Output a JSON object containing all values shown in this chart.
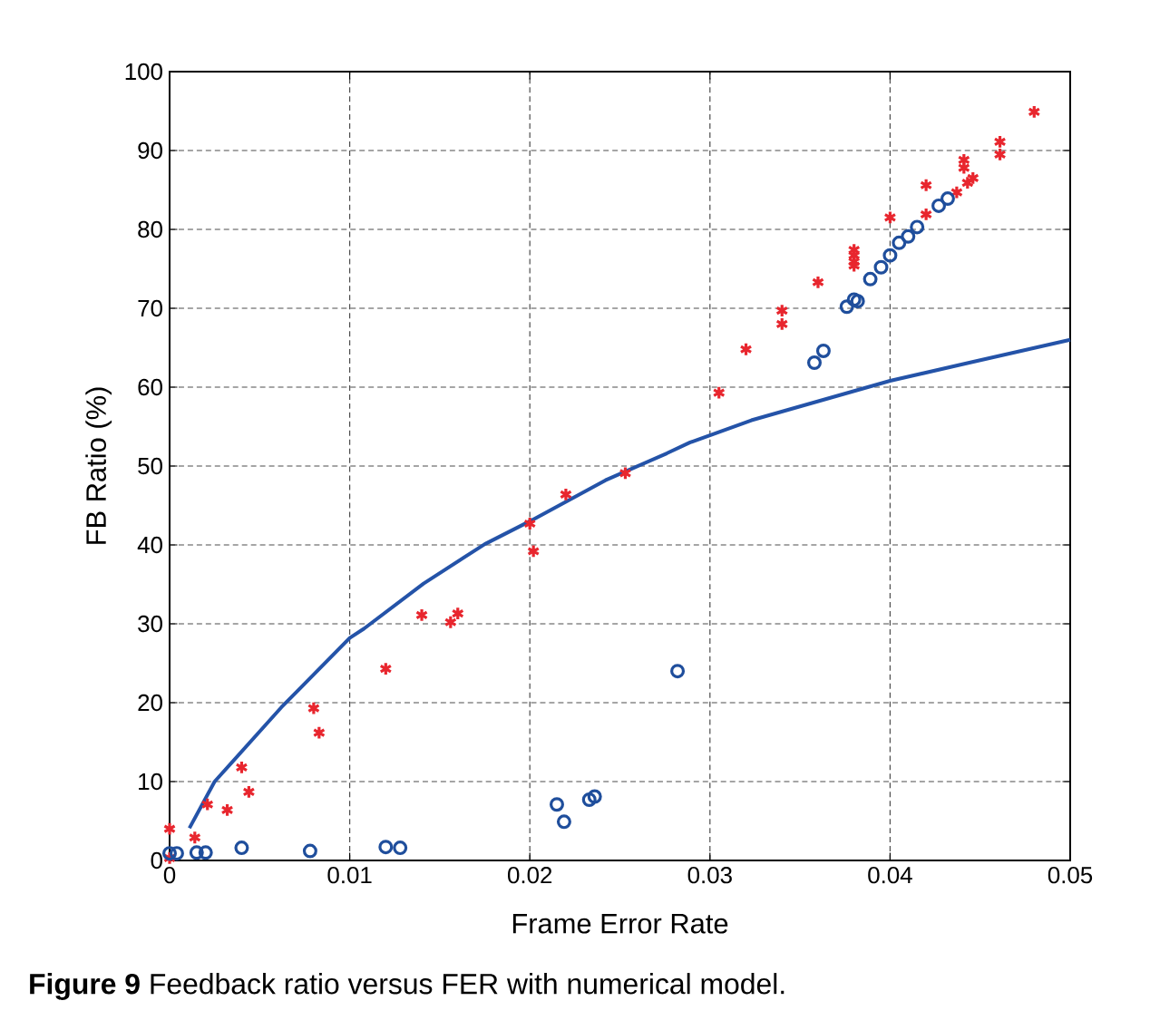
{
  "chart_data": {
    "type": "scatter",
    "xlabel": "Frame Error Rate",
    "ylabel": "FB Ratio (%)",
    "annotations": [
      "**Figure 9** Feedback ratio versus FER with numerical model."
    ],
    "xlim": [
      0,
      0.05
    ],
    "ylim": [
      0,
      100
    ],
    "xticks": [
      0,
      0.01,
      0.02,
      0.03,
      0.04,
      0.05
    ],
    "yticks": [
      0,
      10,
      20,
      30,
      40,
      50,
      60,
      70,
      80,
      90,
      100
    ],
    "grid": true,
    "series": [
      {
        "marker": "cross",
        "color": "#e8262e",
        "x": [
          0.0,
          0.0,
          0.0014,
          0.0021,
          0.0032,
          0.004,
          0.0044,
          0.008,
          0.0083,
          0.012,
          0.014,
          0.0156,
          0.016,
          0.02,
          0.0202,
          0.022,
          0.0253,
          0.0305,
          0.032,
          0.034,
          0.034,
          0.036,
          0.038,
          0.038,
          0.038,
          0.038,
          0.04,
          0.042,
          0.042,
          0.0437,
          0.0441,
          0.0441,
          0.0443,
          0.0446,
          0.0461,
          0.0461,
          0.048
        ],
        "values": [
          4.0,
          0.3,
          2.9,
          7.1,
          6.4,
          11.8,
          8.7,
          19.3,
          16.2,
          24.3,
          31.1,
          30.2,
          31.3,
          42.7,
          39.2,
          46.4,
          49.1,
          59.3,
          64.8,
          69.7,
          68.0,
          73.3,
          77.4,
          76.7,
          75.9,
          75.4,
          81.5,
          85.6,
          81.9,
          84.7,
          88.8,
          87.8,
          85.9,
          86.5,
          91.1,
          89.5,
          94.9
        ]
      },
      {
        "marker": "circle",
        "color": "#1f4e9c",
        "x": [
          0.0,
          0.0004,
          0.0015,
          0.002,
          0.004,
          0.0078,
          0.012,
          0.0128,
          0.0215,
          0.0219,
          0.0233,
          0.0236,
          0.0282,
          0.0358,
          0.0363,
          0.0376,
          0.038,
          0.0382,
          0.0389,
          0.0395,
          0.04,
          0.0405,
          0.041,
          0.0415,
          0.0427,
          0.0432
        ],
        "values": [
          0.9,
          0.9,
          1.0,
          1.0,
          1.6,
          1.2,
          1.7,
          1.6,
          7.1,
          4.9,
          7.7,
          8.1,
          24.0,
          63.1,
          64.6,
          70.2,
          71.1,
          70.9,
          73.7,
          75.2,
          76.7,
          78.3,
          79.1,
          80.3,
          83.0,
          83.9
        ]
      },
      {
        "type": "line",
        "marker": "none",
        "line_style": "solid",
        "color": "#2453a8",
        "x": [
          0.0011,
          0.0025,
          0.0062,
          0.01,
          0.0108,
          0.0141,
          0.0175,
          0.02,
          0.0242,
          0.0276,
          0.0289,
          0.0323,
          0.04,
          0.0444,
          0.05
        ],
        "values": [
          4.1,
          10.0,
          19.4,
          28.2,
          29.4,
          35.1,
          40.1,
          43.0,
          48.2,
          51.6,
          53.0,
          55.8,
          60.8,
          63.1,
          66.0
        ]
      }
    ]
  }
}
